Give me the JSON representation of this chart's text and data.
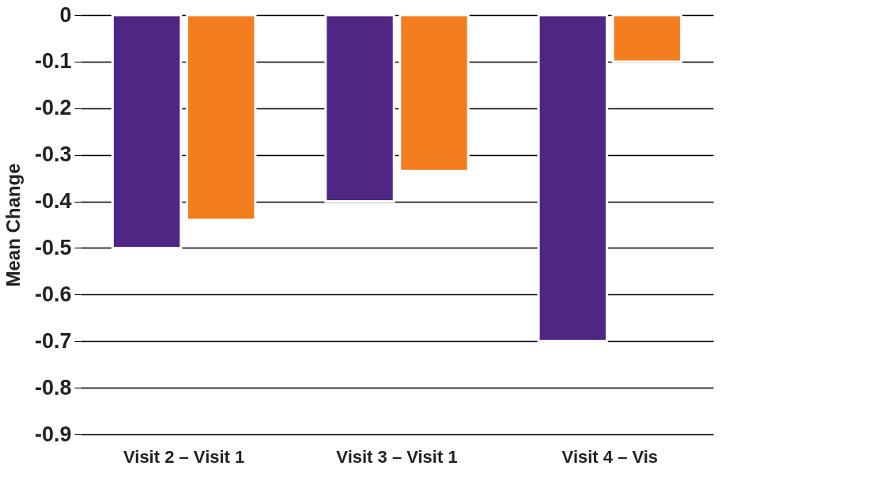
{
  "chart_data": {
    "type": "bar",
    "ylabel": "Mean Change",
    "categories": [
      "Visit 2  – Visit 1",
      "Visit 3  – Visit 1",
      "Visit 4  – Vis"
    ],
    "series": [
      {
        "color": "#4f2683",
        "values": [
          -0.5,
          -0.4,
          -0.7
        ]
      },
      {
        "color": "#f47d20",
        "values": [
          -0.44,
          -0.335,
          -0.1
        ]
      }
    ],
    "ylim": [
      -0.9,
      0
    ],
    "yticks": [
      0,
      -0.1,
      -0.2,
      -0.3,
      -0.4,
      -0.5,
      -0.6,
      -0.7,
      -0.8,
      -0.9
    ],
    "grid": "y",
    "legend": false
  }
}
